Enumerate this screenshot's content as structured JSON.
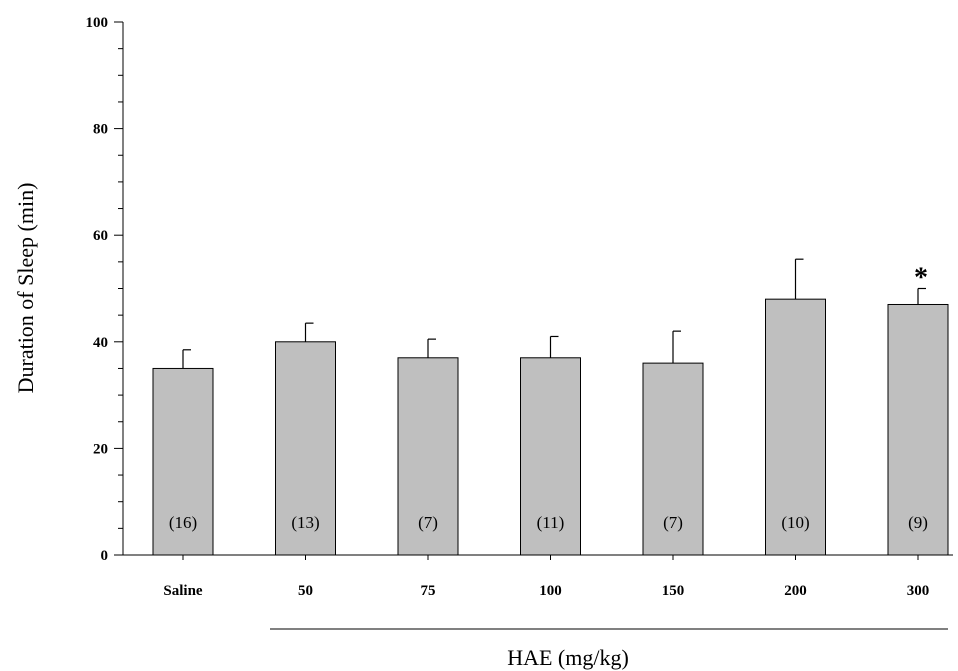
{
  "chart_data": {
    "type": "bar",
    "categories": [
      "Saline",
      "50",
      "75",
      "100",
      "150",
      "200",
      "300"
    ],
    "values": [
      35,
      40,
      37,
      37,
      36,
      48,
      47
    ],
    "errors": [
      3.5,
      3.5,
      3.5,
      4,
      6,
      7.5,
      3
    ],
    "n_labels": [
      "(16)",
      "(13)",
      "(7)",
      "(11)",
      "(7)",
      "(10)",
      "(9)"
    ],
    "annotations": [
      {
        "category": "300",
        "text": "*"
      }
    ],
    "ylabel": "Duration of Sleep (min)",
    "group_label": "HAE (mg/kg)",
    "ylim": [
      0,
      100
    ],
    "yticks": [
      0,
      20,
      40,
      60,
      80,
      100
    ],
    "bar_color": "#bfbfbf",
    "grid": false
  }
}
